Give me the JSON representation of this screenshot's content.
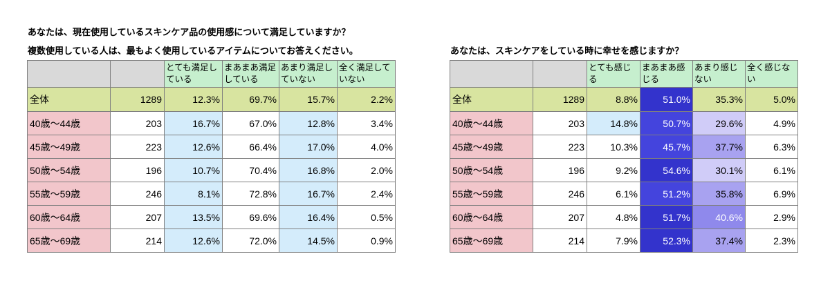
{
  "left": {
    "title1": "あなたは、現在使用しているスキンケア品の使用感について満足していますか？",
    "title2": "複数使用している人は、最もよく使用しているアイテムについてお答えください。",
    "headers": [
      "",
      "",
      "とても満足している",
      "まあまあ満足している",
      "あまり満足していない",
      "全く満足していない"
    ],
    "rows": [
      {
        "label": "全体",
        "n": "1289",
        "v": [
          "12.3%",
          "69.7%",
          "15.7%",
          "2.2%"
        ]
      },
      {
        "label": "40歳～44歳",
        "n": "203",
        "v": [
          "16.7%",
          "67.0%",
          "12.8%",
          "3.4%"
        ]
      },
      {
        "label": "45歳～49歳",
        "n": "223",
        "v": [
          "12.6%",
          "66.4%",
          "17.0%",
          "4.0%"
        ]
      },
      {
        "label": "50歳～54歳",
        "n": "196",
        "v": [
          "10.7%",
          "70.4%",
          "16.8%",
          "2.0%"
        ]
      },
      {
        "label": "55歳～59歳",
        "n": "246",
        "v": [
          "8.1%",
          "72.8%",
          "16.7%",
          "2.4%"
        ]
      },
      {
        "label": "60歳～64歳",
        "n": "207",
        "v": [
          "13.5%",
          "69.6%",
          "16.4%",
          "0.5%"
        ]
      },
      {
        "label": "65歳～69歳",
        "n": "214",
        "v": [
          "12.6%",
          "72.0%",
          "14.5%",
          "0.9%"
        ]
      }
    ]
  },
  "right": {
    "title1": "あなたは、スキンケアをしている時に幸せを感じますか？",
    "headers": [
      "",
      "",
      "とても感じる",
      "まあまあ感じる",
      "あまり感じない",
      "全く感じない"
    ],
    "rows": [
      {
        "label": "全体",
        "n": "1289",
        "v": [
          "8.8%",
          "51.0%",
          "35.3%",
          "5.0%"
        ]
      },
      {
        "label": "40歳～44歳",
        "n": "203",
        "v": [
          "14.8%",
          "50.7%",
          "29.6%",
          "4.9%"
        ]
      },
      {
        "label": "45歳～49歳",
        "n": "223",
        "v": [
          "10.3%",
          "45.7%",
          "37.7%",
          "6.3%"
        ]
      },
      {
        "label": "50歳～54歳",
        "n": "196",
        "v": [
          "9.2%",
          "54.6%",
          "30.1%",
          "6.1%"
        ]
      },
      {
        "label": "55歳～59歳",
        "n": "246",
        "v": [
          "6.1%",
          "51.2%",
          "35.8%",
          "6.9%"
        ]
      },
      {
        "label": "60歳～64歳",
        "n": "207",
        "v": [
          "4.8%",
          "51.7%",
          "40.6%",
          "2.9%"
        ]
      },
      {
        "label": "65歳～69歳",
        "n": "214",
        "v": [
          "7.9%",
          "52.3%",
          "37.4%",
          "2.3%"
        ]
      }
    ]
  },
  "chart_data": [
    {
      "type": "table",
      "title": "あなたは、現在使用しているスキンケア品の使用感について満足していますか？ 複数使用している人は、最もよく使用しているアイテムについてお答えください。",
      "columns": [
        "",
        "",
        "とても満足している",
        "まあまあ満足している",
        "あまり満足していない",
        "全く満足していない"
      ],
      "categories": [
        "全体",
        "40歳～44歳",
        "45歳～49歳",
        "50歳～54歳",
        "55歳～59歳",
        "60歳～64歳",
        "65歳～69歳"
      ],
      "n": [
        1289,
        203,
        223,
        196,
        246,
        207,
        214
      ],
      "series": [
        {
          "name": "とても満足している",
          "values": [
            12.3,
            16.7,
            12.6,
            10.7,
            8.1,
            13.5,
            12.6
          ]
        },
        {
          "name": "まあまあ満足している",
          "values": [
            69.7,
            67.0,
            66.4,
            70.4,
            72.8,
            69.6,
            72.0
          ]
        },
        {
          "name": "あまり満足していない",
          "values": [
            15.7,
            12.8,
            17.0,
            16.8,
            16.7,
            16.4,
            14.5
          ]
        },
        {
          "name": "全く満足していない",
          "values": [
            2.2,
            3.4,
            4.0,
            2.0,
            2.4,
            0.5,
            0.9
          ]
        }
      ]
    },
    {
      "type": "table",
      "title": "あなたは、スキンケアをしている時に幸せを感じますか？",
      "columns": [
        "",
        "",
        "とても感じる",
        "まあまあ感じる",
        "あまり感じない",
        "全く感じない"
      ],
      "categories": [
        "全体",
        "40歳～44歳",
        "45歳～49歳",
        "50歳～54歳",
        "55歳～59歳",
        "60歳～64歳",
        "65歳～69歳"
      ],
      "n": [
        1289,
        203,
        223,
        196,
        246,
        207,
        214
      ],
      "series": [
        {
          "name": "とても感じる",
          "values": [
            8.8,
            14.8,
            10.3,
            9.2,
            6.1,
            4.8,
            7.9
          ]
        },
        {
          "name": "まあまあ感じる",
          "values": [
            51.0,
            50.7,
            45.7,
            54.6,
            51.2,
            51.7,
            52.3
          ]
        },
        {
          "name": "あまり感じない",
          "values": [
            35.3,
            29.6,
            37.7,
            30.1,
            35.8,
            40.6,
            37.4
          ]
        },
        {
          "name": "全く感じない",
          "values": [
            5.0,
            4.9,
            6.3,
            6.1,
            6.9,
            2.9,
            2.3
          ]
        }
      ]
    }
  ]
}
